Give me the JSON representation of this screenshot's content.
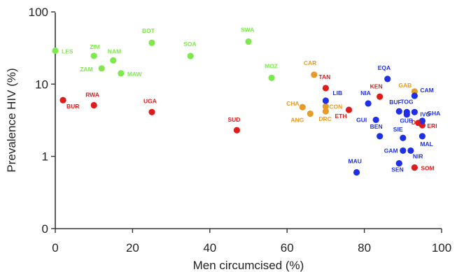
{
  "chart_data": {
    "type": "scatter",
    "title": "",
    "xlabel": "Men circumcised (%)",
    "ylabel": "Prevalence HIV (%)",
    "x_scale": "linear",
    "y_scale": "log",
    "xlim": [
      0,
      100
    ],
    "ylim": [
      0.1,
      100
    ],
    "x_ticks": [
      0,
      20,
      40,
      60,
      80,
      100
    ],
    "y_ticks": [
      0.1,
      1,
      10,
      100
    ],
    "y_tick_labels": [
      "0",
      "1",
      "10",
      "100"
    ],
    "grid": false,
    "legend": "none",
    "series": [
      {
        "color": "#7ee84e",
        "points": [
          {
            "label": "LES",
            "x": 0,
            "y": 29
          },
          {
            "label": "ZIM",
            "x": 10,
            "y": 24.6
          },
          {
            "label": "NAM",
            "x": 15,
            "y": 21.3
          },
          {
            "label": "ZAM",
            "x": 12,
            "y": 16.5
          },
          {
            "label": "MAW",
            "x": 17,
            "y": 14.1
          },
          {
            "label": "BOT",
            "x": 25,
            "y": 37.3
          },
          {
            "label": "SOA",
            "x": 35,
            "y": 24.5
          },
          {
            "label": "SWA",
            "x": 50,
            "y": 38.8
          },
          {
            "label": "MOZ",
            "x": 56,
            "y": 12.2
          }
        ]
      },
      {
        "color": "#dd1c1c",
        "points": [
          {
            "label": "BUR",
            "x": 2,
            "y": 6
          },
          {
            "label": "RWA",
            "x": 10,
            "y": 5.1
          },
          {
            "label": "UGA",
            "x": 25,
            "y": 4.1
          },
          {
            "label": "SUD",
            "x": 47,
            "y": 2.3
          },
          {
            "label": "TAN",
            "x": 70,
            "y": 8.8
          },
          {
            "label": "KEN",
            "x": 84,
            "y": 6.7
          },
          {
            "label": "ETH",
            "x": 76,
            "y": 4.4
          },
          {
            "label": "DJI",
            "x": 94,
            "y": 2.9
          },
          {
            "label": "ERI",
            "x": 95,
            "y": 2.7
          },
          {
            "label": "SOM",
            "x": 93,
            "y": 0.7
          }
        ]
      },
      {
        "color": "#e89a2a",
        "points": [
          {
            "label": "CAR",
            "x": 67,
            "y": 13.5
          },
          {
            "label": "CHA",
            "x": 64,
            "y": 4.8
          },
          {
            "label": "CON",
            "x": 70,
            "y": 4.9
          },
          {
            "label": "ANG",
            "x": 66,
            "y": 3.9
          },
          {
            "label": "DRC",
            "x": 70,
            "y": 4.2
          },
          {
            "label": "GAB",
            "x": 93,
            "y": 7.9
          }
        ]
      },
      {
        "color": "#1f2fe6",
        "points": [
          {
            "label": "EQA",
            "x": 86,
            "y": 11.8
          },
          {
            "label": "NIA",
            "x": 81,
            "y": 5.4
          },
          {
            "label": "LIB",
            "x": 70,
            "y": 5.9
          },
          {
            "label": "BUF",
            "x": 89,
            "y": 4.2
          },
          {
            "label": "TOG",
            "x": 91,
            "y": 4.1
          },
          {
            "label": "CAM",
            "x": 93,
            "y": 6.9
          },
          {
            "label": "IVO",
            "x": 93,
            "y": 4.1
          },
          {
            "label": "GHA",
            "x": 95,
            "y": 3.1
          },
          {
            "label": "GUI",
            "x": 83,
            "y": 3.2
          },
          {
            "label": "GUB",
            "x": 91,
            "y": 3.8
          },
          {
            "label": "BEN",
            "x": 84,
            "y": 1.9
          },
          {
            "label": "SIE",
            "x": 90,
            "y": 1.8
          },
          {
            "label": "MAL",
            "x": 95,
            "y": 1.9
          },
          {
            "label": "GAM",
            "x": 90,
            "y": 1.2
          },
          {
            "label": "NIR",
            "x": 92,
            "y": 1.2
          },
          {
            "label": "SEN",
            "x": 89,
            "y": 0.8
          },
          {
            "label": "MAU",
            "x": 78,
            "y": 0.6
          }
        ]
      }
    ]
  }
}
